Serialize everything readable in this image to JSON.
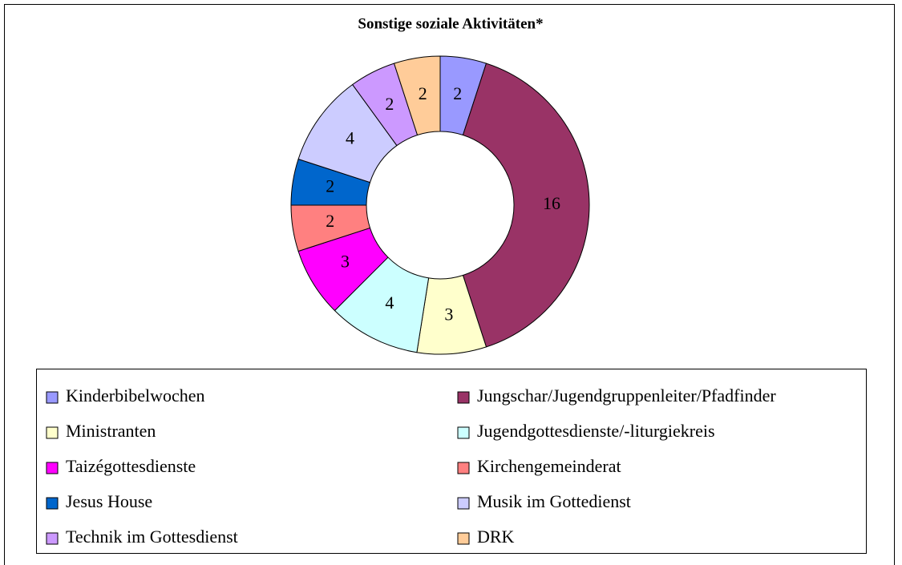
{
  "chart_data": {
    "type": "donut",
    "title": "Sonstige soziale Aktivitäten*",
    "categories": [
      "Kinderbibelwochen",
      "Jungschar/Jugendgruppenleiter/Pfadfinder",
      "Ministranten",
      "Jugendgottesdienste/-liturgiekreis",
      "Taizégottesdienste",
      "Kirchengemeinderat",
      "Jesus House",
      "Musik im Gottedienst",
      "Technik im Gottesdienst",
      "DRK"
    ],
    "values": [
      2,
      16,
      3,
      4,
      3,
      2,
      2,
      4,
      2,
      2
    ],
    "colors": [
      "#9999ff",
      "#993366",
      "#ffffcc",
      "#ccffff",
      "#ff00ff",
      "#ff8080",
      "#0066cc",
      "#ccccff",
      "#cc99ff",
      "#ffcc99"
    ]
  }
}
